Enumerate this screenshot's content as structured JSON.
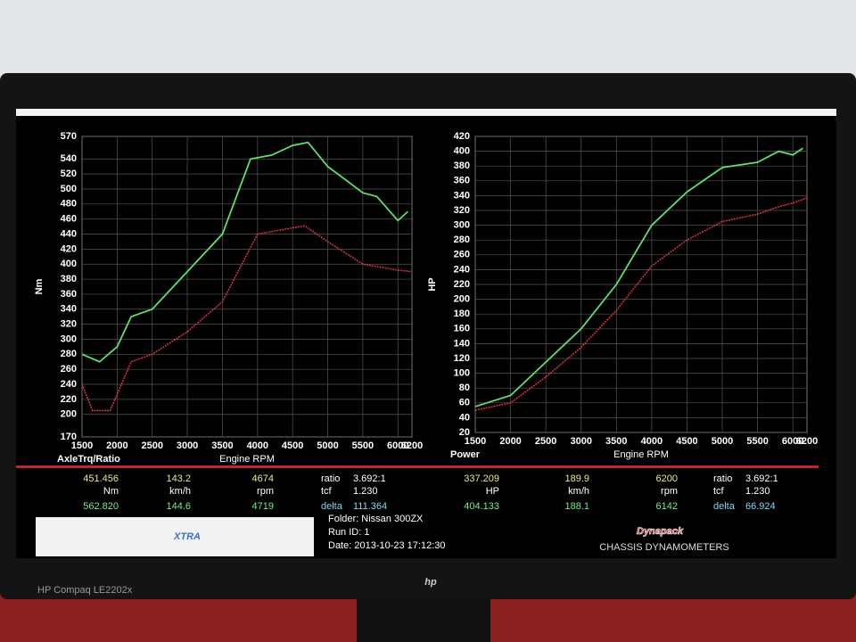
{
  "chart_data": [
    {
      "type": "line",
      "title": "AxleTrq/Ratio",
      "xlabel": "Engine RPM",
      "ylabel": "Nm",
      "xlim": [
        1500,
        6200
      ],
      "xticks": [
        1500,
        2000,
        2500,
        3000,
        3500,
        4000,
        4500,
        5000,
        5500,
        6000,
        6200
      ],
      "ylim": [
        170,
        570
      ],
      "yticks": [
        170,
        200,
        220,
        240,
        260,
        280,
        300,
        320,
        340,
        360,
        380,
        400,
        420,
        440,
        460,
        480,
        500,
        520,
        540,
        570
      ],
      "grid": true,
      "series": [
        {
          "color": "#5fe06a",
          "x": [
            1500,
            1750,
            2000,
            2200,
            2500,
            3000,
            3500,
            3900,
            4200,
            4500,
            4719,
            5000,
            5500,
            5700,
            6000,
            6142
          ],
          "values": [
            280,
            270,
            290,
            330,
            340,
            390,
            440,
            540,
            545,
            558,
            562,
            530,
            495,
            490,
            458,
            470
          ]
        },
        {
          "color": "#e0304a",
          "x": [
            1500,
            1650,
            1900,
            2200,
            2500,
            3000,
            3500,
            4000,
            4300,
            4674,
            5000,
            5500,
            6000,
            6200
          ],
          "values": [
            240,
            205,
            205,
            270,
            280,
            310,
            350,
            440,
            445,
            451,
            430,
            400,
            392,
            390
          ]
        }
      ]
    },
    {
      "type": "line",
      "title": "Power",
      "xlabel": "Engine RPM",
      "ylabel": "HP",
      "xlim": [
        1500,
        6200
      ],
      "xticks": [
        1500,
        2000,
        2500,
        3000,
        3500,
        4000,
        4500,
        5000,
        5500,
        6000,
        6200
      ],
      "ylim": [
        20,
        420
      ],
      "yticks": [
        20,
        40,
        60,
        80,
        100,
        120,
        140,
        160,
        180,
        200,
        220,
        240,
        260,
        280,
        300,
        320,
        340,
        360,
        380,
        400,
        420
      ],
      "grid": true,
      "series": [
        {
          "color": "#5fe06a",
          "x": [
            1500,
            2000,
            2500,
            3000,
            3500,
            4000,
            4500,
            5000,
            5500,
            5800,
            6000,
            6142
          ],
          "values": [
            55,
            70,
            115,
            160,
            220,
            300,
            345,
            378,
            385,
            400,
            395,
            404
          ]
        },
        {
          "color": "#e0304a",
          "x": [
            1500,
            2000,
            2500,
            3000,
            3500,
            4000,
            4500,
            5000,
            5500,
            5800,
            6000,
            6200
          ],
          "values": [
            50,
            60,
            95,
            135,
            185,
            245,
            280,
            305,
            315,
            325,
            330,
            337
          ]
        }
      ]
    }
  ],
  "panel": {
    "left": {
      "values": [
        [
          "451.456",
          "143.2",
          "4674"
        ],
        [
          "Nm",
          "km/h",
          "rpm"
        ],
        [
          "562.820",
          "144.6",
          "4719"
        ]
      ],
      "stats": [
        [
          "ratio",
          "3.692:1"
        ],
        [
          "tcf",
          "1.230"
        ],
        [
          "delta",
          "111.364"
        ]
      ]
    },
    "right": {
      "values": [
        [
          "337.209",
          "189.9",
          "6200"
        ],
        [
          "HP",
          "km/h",
          "rpm"
        ],
        [
          "404.133",
          "188.1",
          "6142"
        ]
      ],
      "stats": [
        [
          "ratio",
          "3.692:1"
        ],
        [
          "tcf",
          "1.230"
        ],
        [
          "delta",
          "66.924"
        ]
      ]
    },
    "info": [
      "Folder: Nissan 300ZX",
      "Run ID: 1",
      "Date: 2013-10-23 17:12:30"
    ],
    "logo_left": "XTRA",
    "logo_right": "Dynapack",
    "logo_right_sub": "CHASSIS DYNAMOMETERS",
    "monitor_model": "HP Compaq LE2202x",
    "monitor_brand": "hp"
  }
}
